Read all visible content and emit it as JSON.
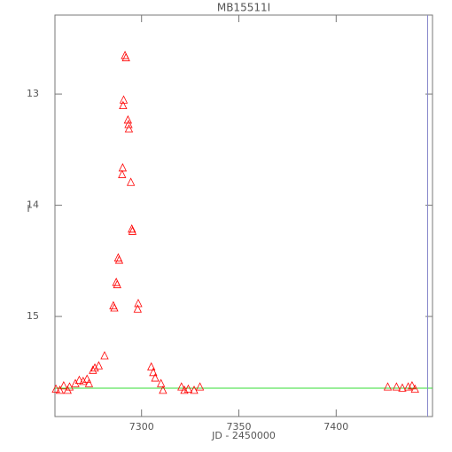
{
  "chart_data": {
    "type": "scatter",
    "title": "MB15511I",
    "x_label": "JD - 2450000",
    "y_label": "I",
    "marker": "triangle",
    "color": "#ff0000",
    "x": [
      7256,
      7258,
      7260,
      7262,
      7263,
      7266,
      7268,
      7270,
      7272,
      7273,
      7275,
      7276,
      7278,
      7281,
      7285.5,
      7286,
      7287,
      7287.5,
      7288,
      7288.5,
      7290,
      7290.3,
      7290.5,
      7290.8,
      7291.5,
      7292,
      7293,
      7293.3,
      7293.5,
      7294.5,
      7295,
      7295.3,
      7298,
      7298.3,
      7305,
      7306,
      7307,
      7310,
      7311,
      7320.5,
      7322,
      7324,
      7327,
      7330,
      7426.5,
      7431,
      7434,
      7437,
      7439,
      7440.5
    ],
    "values": [
      15.65,
      15.66,
      15.62,
      15.66,
      15.63,
      15.6,
      15.57,
      15.58,
      15.56,
      15.6,
      15.48,
      15.46,
      15.44,
      15.35,
      14.9,
      14.92,
      14.69,
      14.71,
      14.47,
      14.49,
      13.72,
      13.66,
      13.1,
      13.05,
      12.65,
      12.67,
      13.23,
      13.27,
      13.31,
      13.79,
      14.21,
      14.23,
      14.93,
      14.88,
      15.45,
      15.5,
      15.55,
      15.6,
      15.66,
      15.63,
      15.66,
      15.65,
      15.66,
      15.63,
      15.63,
      15.63,
      15.64,
      15.63,
      15.62,
      15.65
    ],
    "baseline": {
      "value": 15.645,
      "color": "#33dd33"
    },
    "vline": {
      "value": 7447,
      "color": "#8888cc"
    },
    "xlim": [
      7255.5,
      7449.5
    ],
    "ylim": [
      15.9,
      12.29
    ],
    "xticks": [
      7300,
      7350,
      7400
    ],
    "yticks": [
      13,
      14,
      15
    ]
  }
}
